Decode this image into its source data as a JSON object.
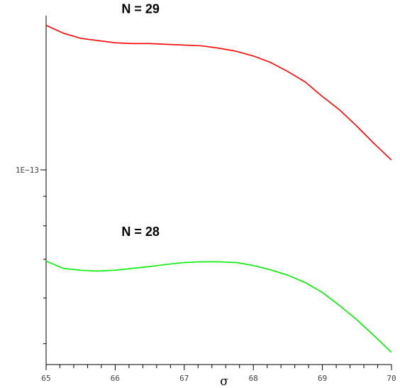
{
  "chart_data": {
    "type": "line",
    "xlabel": "σ",
    "ylabel": "",
    "xlim": [
      65,
      70
    ],
    "ylim": [
      4.6e-14,
      1.85e-13
    ],
    "yscale": "log",
    "grid": false,
    "x_ticks": [
      "65",
      "66",
      "67",
      "68",
      "69",
      "70"
    ],
    "y_tick_labels": [
      {
        "value": 1e-13,
        "label": "1E−13"
      }
    ],
    "annotations": [
      {
        "text": "N = 29",
        "series": 0
      },
      {
        "text": "N = 28",
        "series": 1
      }
    ],
    "series": [
      {
        "color": "#ff0000",
        "x": [
          65,
          65.25,
          65.5,
          65.75,
          66,
          66.25,
          66.5,
          66.75,
          67,
          67.25,
          67.5,
          67.75,
          68,
          68.25,
          68.5,
          68.75,
          69,
          69.25,
          69.5,
          69.75,
          70
        ],
        "y": [
          1.78e-13,
          1.725e-13,
          1.69e-13,
          1.675e-13,
          1.66e-13,
          1.655e-13,
          1.655e-13,
          1.65e-13,
          1.645e-13,
          1.64e-13,
          1.625e-13,
          1.605e-13,
          1.575e-13,
          1.535e-13,
          1.48e-13,
          1.42e-13,
          1.34e-13,
          1.27e-13,
          1.19e-13,
          1.11e-13,
          1.04e-13
        ]
      },
      {
        "color": "#00ee00",
        "x": [
          65,
          65.25,
          65.5,
          65.75,
          66,
          66.25,
          66.5,
          66.75,
          67,
          67.25,
          67.5,
          67.75,
          68,
          68.25,
          68.5,
          68.75,
          69,
          69.25,
          69.5,
          69.75,
          70
        ],
        "y": [
          6.95e-14,
          6.75e-14,
          6.7e-14,
          6.68e-14,
          6.7e-14,
          6.75e-14,
          6.8e-14,
          6.86e-14,
          6.91e-14,
          6.93e-14,
          6.93e-14,
          6.91e-14,
          6.83e-14,
          6.71e-14,
          6.57e-14,
          6.38e-14,
          6.13e-14,
          5.82e-14,
          5.5e-14,
          5.16e-14,
          4.83e-14
        ]
      }
    ]
  }
}
